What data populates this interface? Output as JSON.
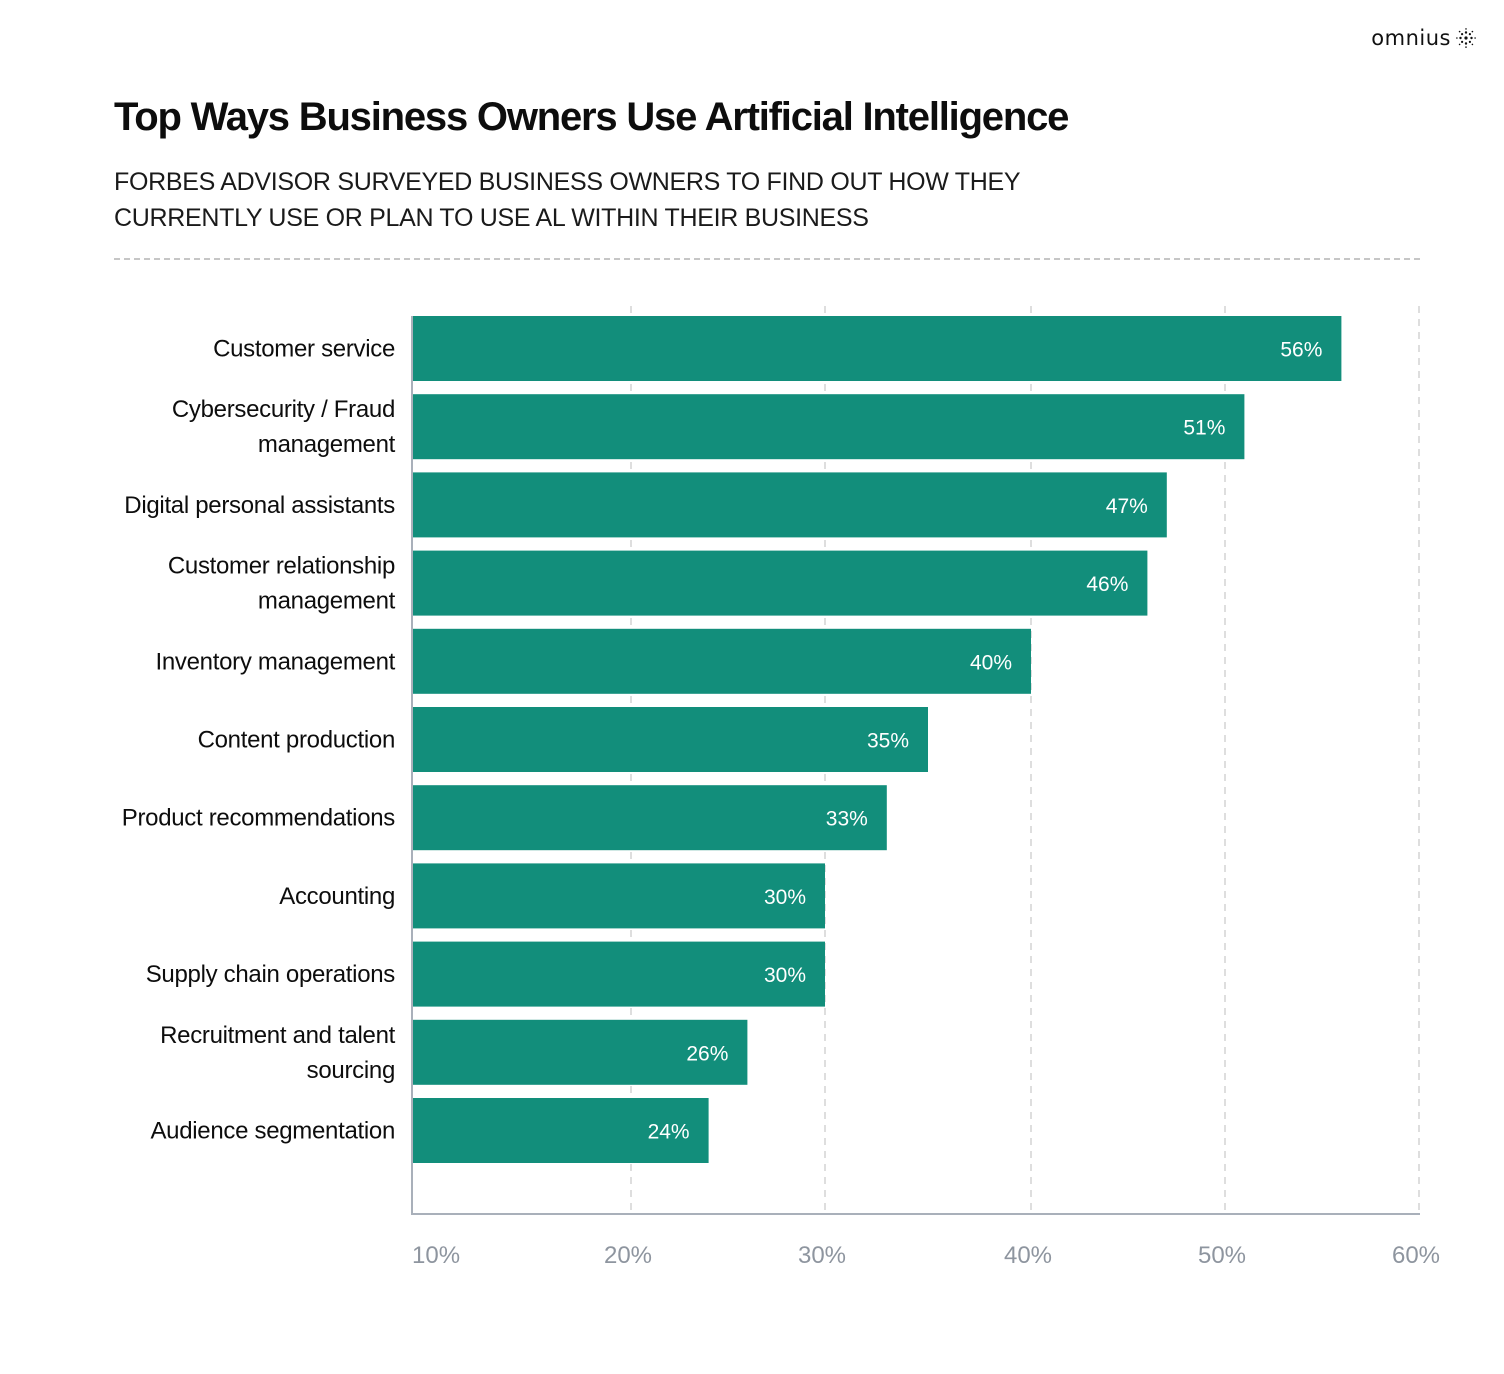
{
  "brand": {
    "name": "omnius",
    "logo_icon": "dotted-sphere-icon"
  },
  "header": {
    "title": "Top Ways Business Owners Use Artificial Intelligence",
    "subtitle": "FORBES ADVISOR SURVEYED BUSINESS OWNERS TO FIND OUT HOW THEY CURRENTLY USE OR PLAN TO USE AL WITHIN THEIR BUSINESS"
  },
  "colors": {
    "bar": "#128e7b",
    "grid": "#d3d3d3",
    "axis": "#a9b0ba",
    "tick_text": "#8e959f"
  },
  "chart_data": {
    "type": "bar",
    "orientation": "horizontal",
    "categories": [
      "Customer service",
      "Cybersecurity / Fraud management",
      "Digital personal assistants",
      "Customer relationship management",
      "Inventory management",
      "Content production",
      "Product recommendations",
      "Accounting",
      "Supply chain operations",
      "Recruitment and talent sourcing",
      "Audience segmentation"
    ],
    "category_lines": [
      [
        "Customer service"
      ],
      [
        "Cybersecurity / Fraud",
        "management"
      ],
      [
        "Digital personal assistants"
      ],
      [
        "Customer relationship",
        "management"
      ],
      [
        "Inventory management"
      ],
      [
        "Content production"
      ],
      [
        "Product recommendations"
      ],
      [
        "Accounting"
      ],
      [
        "Supply chain operations"
      ],
      [
        "Recruitment and talent",
        "sourcing"
      ],
      [
        "Audience segmentation"
      ]
    ],
    "values": [
      56,
      51,
      47,
      46,
      40,
      35,
      33,
      30,
      30,
      26,
      24
    ],
    "value_labels": [
      "56%",
      "51%",
      "47%",
      "46%",
      "40%",
      "35%",
      "33%",
      "30%",
      "30%",
      "26%",
      "24%"
    ],
    "x_ticks": [
      "10%",
      "20%",
      "30%",
      "40%",
      "50%",
      "60%"
    ],
    "xlim": [
      10,
      60
    ],
    "xlabel": "",
    "ylabel": "",
    "grid": true,
    "grid_style": "dashed-vertical"
  }
}
